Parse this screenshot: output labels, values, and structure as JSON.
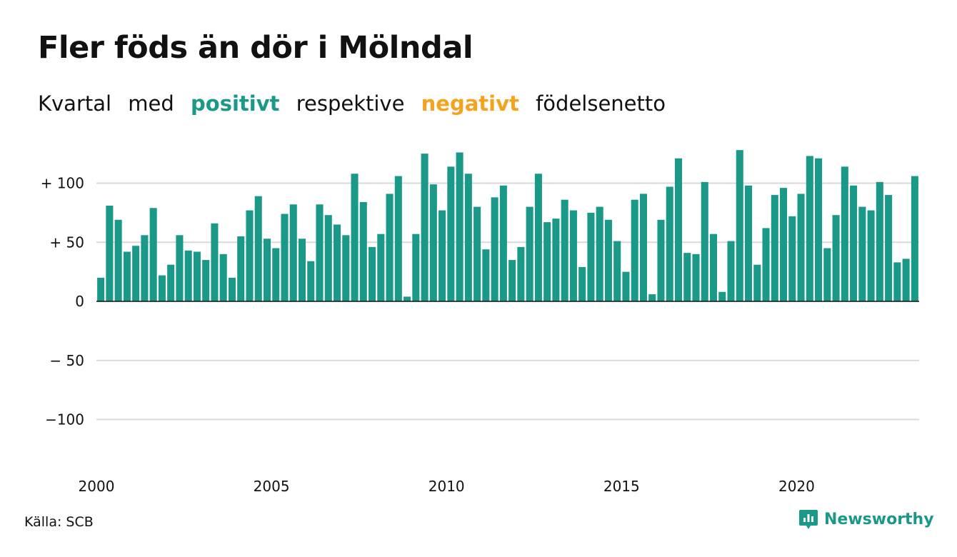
{
  "title": "Fler föds än dör i Mölndal",
  "subtitle": {
    "prefix": "Kvartal",
    "with": "med",
    "positive": "positivt",
    "between": "respektive",
    "negative": "negativt",
    "suffix": "födelsenetto"
  },
  "colors": {
    "positive": "#1a9988",
    "negative": "#f5a31d",
    "grid": "#d9d9d9",
    "axis": "#111111",
    "brand": "#1a9988"
  },
  "source": "Källa: SCB",
  "brand": {
    "name": "Newsworthy",
    "icon": "newsworthy-logo-icon"
  },
  "chart_data": {
    "type": "bar",
    "title": "Fler föds än dör i Mölndal",
    "ylim": [
      -130,
      130
    ],
    "yticks": [
      {
        "value": 100,
        "label": "+ 100"
      },
      {
        "value": 50,
        "label": "+  50"
      },
      {
        "value": 0,
        "label": "0"
      },
      {
        "value": -50,
        "label": "− 50"
      },
      {
        "value": -100,
        "label": "−100"
      }
    ],
    "xticks": [
      "2000",
      "2005",
      "2010",
      "2015",
      "2020"
    ],
    "grid": true,
    "start_year": 2000,
    "series": [
      {
        "values": [
          20,
          81,
          69,
          42,
          47,
          56,
          79,
          22,
          31,
          56,
          43,
          42,
          35,
          66,
          40,
          20,
          55,
          77,
          89,
          53,
          45,
          74,
          82,
          53,
          34,
          82,
          73,
          65,
          56,
          108,
          84,
          46,
          57,
          91,
          106,
          4,
          57,
          125,
          99,
          77,
          114,
          126,
          108,
          80,
          44,
          88,
          98,
          35,
          46,
          80,
          108,
          67,
          70,
          86,
          77,
          29,
          75,
          80,
          69,
          51,
          25,
          86,
          91,
          6,
          69,
          97,
          121,
          41,
          40,
          101,
          57,
          8,
          51,
          128,
          98,
          31,
          62,
          90,
          96,
          72,
          91,
          123,
          121,
          45,
          73,
          114,
          98,
          80,
          77,
          101,
          90,
          33,
          36,
          106
        ]
      }
    ]
  }
}
